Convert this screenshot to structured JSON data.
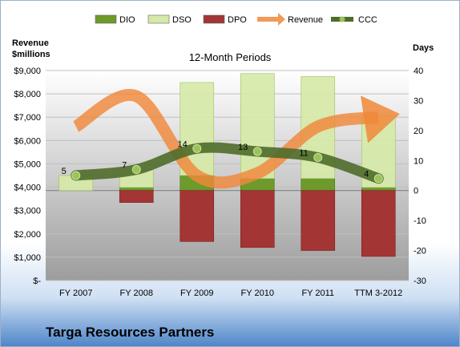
{
  "company": "Targa Resources Partners",
  "chart_data": {
    "type": "bar",
    "title": "12-Month Periods",
    "ylabel_left": [
      "Revenue",
      "$millions"
    ],
    "ylabel_right": "Days",
    "categories": [
      "FY 2007",
      "FY 2008",
      "FY 2009",
      "FY 2010",
      "FY 2011",
      "TTM 3-2012"
    ],
    "left_axis": {
      "min": 0,
      "max": 9000,
      "step": 1000,
      "tick_labels": [
        "$-",
        "$1,000",
        "$2,000",
        "$3,000",
        "$4,000",
        "$5,000",
        "$6,000",
        "$7,000",
        "$8,000",
        "$9,000"
      ]
    },
    "right_axis": {
      "min": -30,
      "max": 40,
      "step": 10,
      "tick_labels": [
        "-30",
        "-20",
        "-10",
        "0",
        "10",
        "20",
        "30",
        "40"
      ]
    },
    "grid": true,
    "legend_position": "top",
    "series": [
      {
        "name": "DIO",
        "axis": "right",
        "kind": "stacked-bar",
        "color": "#6d9a2b",
        "values": [
          0,
          1,
          5,
          4,
          4,
          1
        ]
      },
      {
        "name": "DSO",
        "axis": "right",
        "kind": "stacked-bar",
        "color": "#d6e9a8",
        "values": [
          5,
          6,
          31,
          35,
          34,
          24
        ]
      },
      {
        "name": "DPO",
        "axis": "right",
        "kind": "stacked-bar",
        "color": "#a33535",
        "values": [
          0,
          4,
          17,
          19,
          20,
          22
        ]
      },
      {
        "name": "Revenue",
        "axis": "left",
        "kind": "line",
        "color": "#f0883a",
        "values": [
          6600,
          7900,
          4500,
          4600,
          6600,
          7000
        ]
      },
      {
        "name": "CCC",
        "axis": "right",
        "kind": "line-markers",
        "color": "#4f6b2a",
        "values": [
          5,
          7,
          14,
          13,
          11,
          4
        ]
      }
    ],
    "data_labels": [
      5,
      7,
      14,
      13,
      11,
      4
    ]
  }
}
